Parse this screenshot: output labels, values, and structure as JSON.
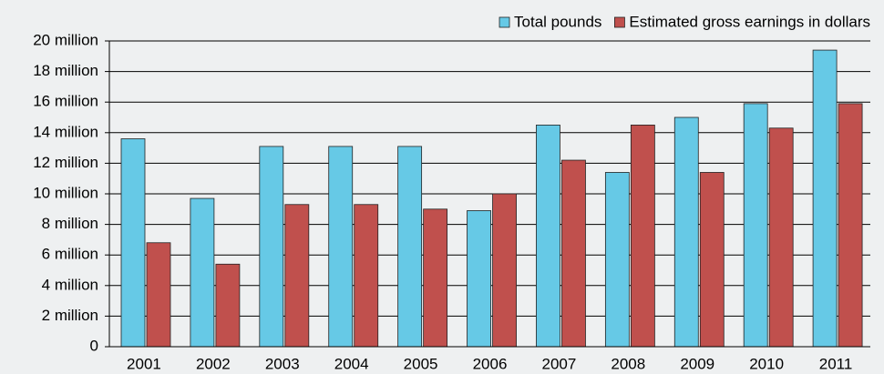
{
  "chart_data": {
    "type": "bar",
    "categories": [
      "2001",
      "2002",
      "2003",
      "2004",
      "2005",
      "2006",
      "2007",
      "2008",
      "2009",
      "2010",
      "2011"
    ],
    "series": [
      {
        "name": "Total pounds",
        "color": "#66c9e6",
        "values": [
          13600000,
          9700000,
          13100000,
          13100000,
          13100000,
          8900000,
          14500000,
          11400000,
          15000000,
          15900000,
          19400000
        ]
      },
      {
        "name": "Estimated gross earnings in dollars",
        "color": "#c0504d",
        "values": [
          6800000,
          5400000,
          9300000,
          9300000,
          9000000,
          10000000,
          12200000,
          14500000,
          11400000,
          14300000,
          15900000
        ]
      }
    ],
    "ylim": [
      0,
      20000000
    ],
    "yticks": [
      0,
      {
        "value": 2000000,
        "label": "2 million"
      },
      {
        "value": 4000000,
        "label": "4 million"
      },
      {
        "value": 6000000,
        "label": "6 million"
      },
      {
        "value": 8000000,
        "label": "8 million"
      },
      {
        "value": 10000000,
        "label": "10 million"
      },
      {
        "value": 12000000,
        "label": "12 million"
      },
      {
        "value": 14000000,
        "label": "14 million"
      },
      {
        "value": 16000000,
        "label": "16 million"
      },
      {
        "value": 18000000,
        "label": "18 million"
      },
      {
        "value": 20000000,
        "label": "20 million"
      }
    ],
    "grid": true,
    "legend": "top-right"
  }
}
